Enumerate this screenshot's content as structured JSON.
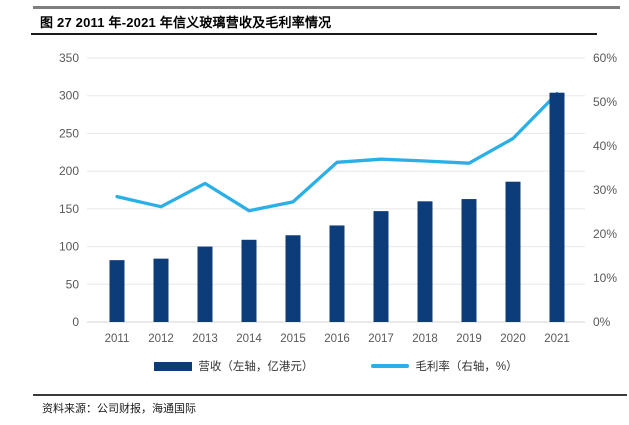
{
  "header": {
    "title": "图 27 2011 年-2021 年信义玻璃营收及毛利率情况"
  },
  "footer": {
    "source": "资料来源：公司财报，海通国际"
  },
  "legend": {
    "revenue_label": "营收（左轴，亿港元）",
    "margin_label": "毛利率（右轴，%）"
  },
  "colors": {
    "bar": "#0c3c7a",
    "line": "#2aafe6",
    "grid": "#e7e7e7",
    "baseline": "#d6d6d6",
    "axis_text": "#595959"
  },
  "chart_data": {
    "type": "bar",
    "title": "2011年-2021年信义玻璃营收及毛利率情况",
    "categories": [
      "2011",
      "2012",
      "2013",
      "2014",
      "2015",
      "2016",
      "2017",
      "2018",
      "2019",
      "2020",
      "2021"
    ],
    "series": [
      {
        "name": "营收（左轴，亿港元）",
        "type": "bar",
        "axis": "left",
        "values": [
          82,
          84,
          100,
          109,
          115,
          128,
          147,
          160,
          163,
          186,
          304
        ]
      },
      {
        "name": "毛利率（右轴，%）",
        "type": "line",
        "axis": "right",
        "values": [
          28.5,
          26.2,
          31.5,
          25.3,
          27.3,
          36.3,
          37.0,
          36.6,
          36.1,
          41.7,
          51.9
        ]
      }
    ],
    "left_axis": {
      "min": 0,
      "max": 350,
      "step": 50,
      "tick_labels": [
        "0",
        "50",
        "100",
        "150",
        "200",
        "250",
        "300",
        "350"
      ]
    },
    "right_axis": {
      "min": 0,
      "max": 60,
      "step": 10,
      "tick_labels": [
        "0%",
        "10%",
        "20%",
        "30%",
        "40%",
        "50%",
        "60%"
      ]
    },
    "grid": true,
    "legend_position": "bottom"
  }
}
